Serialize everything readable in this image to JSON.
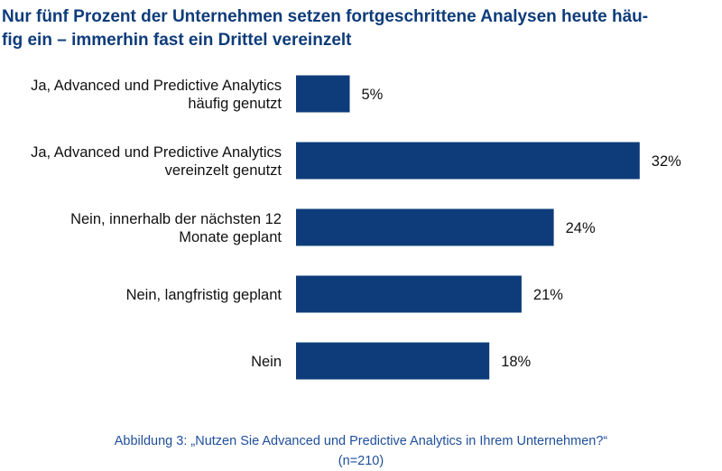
{
  "title": {
    "line1": "Nur fünf Prozent der Unternehmen setzen fortgeschrittene Analysen heute häu-",
    "line2": "fig ein – immerhin fast ein Drittel vereinzelt"
  },
  "caption": {
    "line1": "Abbildung 3: „Nutzen Sie Advanced und Predictive Analytics in Ihrem Unternehmen?“",
    "line2": "(n=210)"
  },
  "colors": {
    "bar": "#0e3c7a",
    "title": "#0e3c7a",
    "caption": "#1f4f9a"
  },
  "chart_data": {
    "type": "bar",
    "orientation": "horizontal",
    "title": "Nur fünf Prozent der Unternehmen setzen fortgeschrittene Analysen heute häufig ein – immerhin fast ein Drittel vereinzelt",
    "xlabel": "",
    "ylabel": "",
    "grid": false,
    "categories": [
      [
        "Ja, Advanced und Predictive Analytics",
        "häufig genutzt"
      ],
      [
        "Ja, Advanced und Predictive Analytics",
        "vereinzelt genutzt"
      ],
      [
        "Nein, innerhalb der nächsten 12",
        "Monate geplant"
      ],
      [
        "Nein, langfristig geplant"
      ],
      [
        "Nein"
      ]
    ],
    "values": [
      5,
      32,
      24,
      21,
      18
    ],
    "value_labels": [
      "5%",
      "32%",
      "24%",
      "21%",
      "18%"
    ],
    "unit": "%"
  }
}
